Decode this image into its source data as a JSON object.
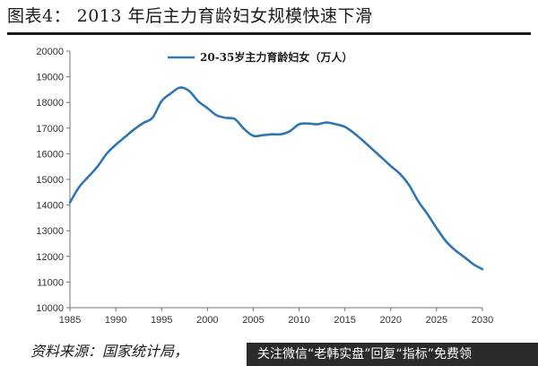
{
  "header": {
    "title": "图表4：  2013 年后主力育龄妇女规模快速下滑"
  },
  "footer": {
    "source": "资料来源：国家统计局，",
    "banner_text": "关注微信“老韩实盘”回复“指标”免费领"
  },
  "colors": {
    "series": "#2e75b6",
    "axis": "#777777",
    "title_rule": "#1a1a1a",
    "banner_bg": "#2b2b2b"
  },
  "chart_data": {
    "type": "line",
    "title": "",
    "xlabel": "",
    "ylabel": "",
    "xlim": [
      1985,
      2030
    ],
    "ylim": [
      10000,
      20000
    ],
    "y_ticks": [
      10000,
      11000,
      12000,
      13000,
      14000,
      15000,
      16000,
      17000,
      18000,
      19000,
      20000
    ],
    "x_ticks": [
      1985,
      1990,
      1995,
      2000,
      2005,
      2010,
      2015,
      2020,
      2025,
      2030
    ],
    "grid": false,
    "legend": "top-center",
    "series": [
      {
        "name": "20-35岁主力育龄妇女（万人）",
        "x": [
          1985,
          1986,
          1987,
          1988,
          1989,
          1990,
          1991,
          1992,
          1993,
          1994,
          1995,
          1996,
          1997,
          1998,
          1999,
          2000,
          2001,
          2002,
          2003,
          2004,
          2005,
          2006,
          2007,
          2008,
          2009,
          2010,
          2011,
          2012,
          2013,
          2014,
          2015,
          2016,
          2017,
          2018,
          2019,
          2020,
          2021,
          2022,
          2023,
          2024,
          2025,
          2026,
          2027,
          2028,
          2029,
          2030
        ],
        "values": [
          14100,
          14700,
          15100,
          15500,
          16000,
          16350,
          16650,
          16950,
          17200,
          17400,
          18050,
          18350,
          18580,
          18450,
          18050,
          17780,
          17500,
          17400,
          17350,
          16970,
          16700,
          16720,
          16760,
          16760,
          16880,
          17150,
          17180,
          17150,
          17220,
          17150,
          17050,
          16800,
          16500,
          16180,
          15850,
          15520,
          15220,
          14780,
          14150,
          13650,
          13100,
          12600,
          12250,
          11980,
          11700,
          11500
        ]
      }
    ]
  }
}
